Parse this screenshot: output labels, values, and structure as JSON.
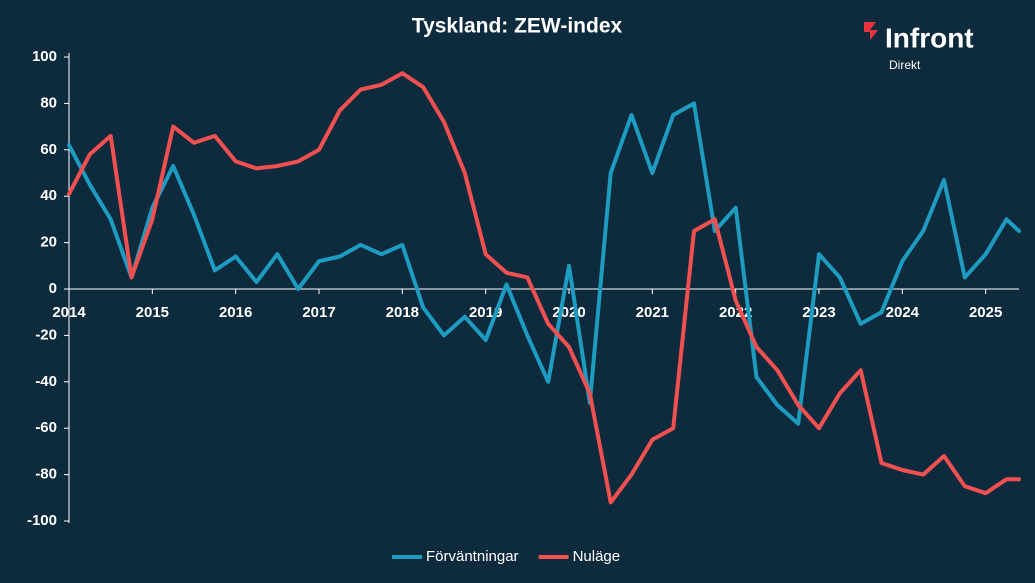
{
  "chart_data": {
    "type": "line",
    "title": "Tyskland: ZEW-index",
    "logo": {
      "name": "Infront",
      "sub": "Direkt"
    },
    "x": [
      2014,
      2014.25,
      2014.5,
      2014.75,
      2015,
      2015.25,
      2015.5,
      2015.75,
      2016,
      2016.25,
      2016.5,
      2016.75,
      2017,
      2017.25,
      2017.5,
      2017.75,
      2018,
      2018.25,
      2018.5,
      2018.75,
      2019,
      2019.25,
      2019.5,
      2019.75,
      2020,
      2020.25,
      2020.5,
      2020.75,
      2021,
      2021.25,
      2021.5,
      2021.75,
      2022,
      2022.25,
      2022.5,
      2022.75,
      2023,
      2023.25,
      2023.5,
      2023.75,
      2024,
      2024.25,
      2024.5,
      2024.75,
      2025,
      2025.25,
      2025.4
    ],
    "series": [
      {
        "name": "Förväntningar",
        "color": "#1e9bc0",
        "values": [
          62,
          45,
          30,
          5,
          35,
          53,
          32,
          8,
          14,
          3,
          15,
          0,
          12,
          14,
          19,
          15,
          19,
          -8,
          -20,
          -12,
          -22,
          2,
          -20,
          -40,
          10,
          -49,
          50,
          75,
          50,
          75,
          80,
          25,
          35,
          -38,
          -50,
          -58,
          15,
          5,
          -15,
          -10,
          12,
          25,
          47,
          5,
          15,
          30,
          25
        ]
      },
      {
        "name": "Nuläge",
        "color": "#f0504f",
        "values": [
          41,
          58,
          66,
          5,
          30,
          70,
          63,
          66,
          55,
          52,
          53,
          55,
          60,
          77,
          86,
          88,
          93,
          87,
          72,
          50,
          15,
          7,
          5,
          -15,
          -25,
          -45,
          -92,
          -80,
          -65,
          -60,
          25,
          30,
          -5,
          -25,
          -35,
          -50,
          -60,
          -45,
          -35,
          -75,
          -78,
          -80,
          -72,
          -85,
          -88,
          -82,
          -82
        ]
      }
    ],
    "xlim": [
      2014,
      2025.4
    ],
    "xticks": [
      2014,
      2015,
      2016,
      2017,
      2018,
      2019,
      2020,
      2021,
      2022,
      2023,
      2024,
      2025
    ],
    "ylim": [
      -100,
      100
    ],
    "yticks": [
      -100,
      -80,
      -60,
      -40,
      -20,
      0,
      20,
      40,
      60,
      80,
      100
    ],
    "grid": false,
    "legend": "bottom"
  }
}
